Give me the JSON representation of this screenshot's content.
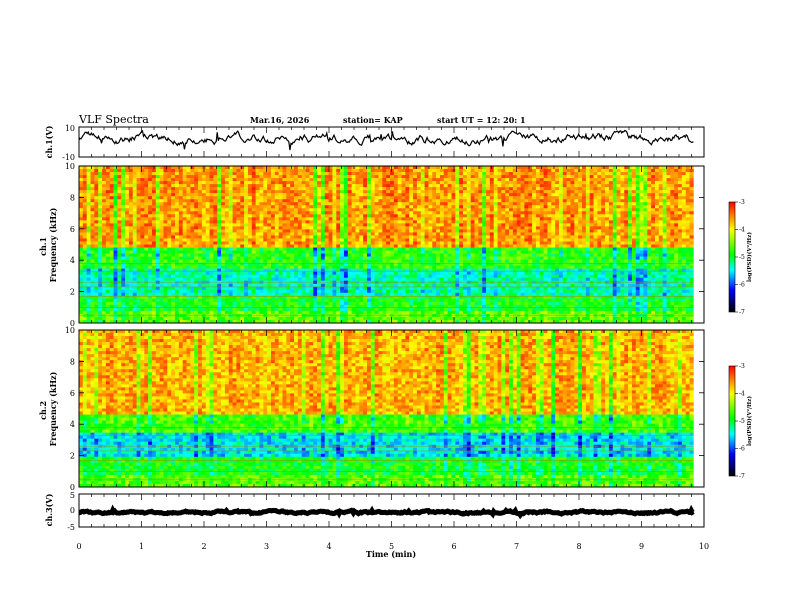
{
  "header": {
    "title": "VLF Spectra",
    "date": "Mar.16, 2026",
    "station": "station= KAP",
    "start": "start  UT  =    12: 20: 1"
  },
  "colorbar": {
    "label": "log(PSD)(V²/Hz)",
    "ticks": [
      "-3",
      "-4",
      "-5",
      "-6",
      "-7"
    ],
    "colors": [
      "#ff0000",
      "#ffff00",
      "#00ff00",
      "#00ffff",
      "#0000ff",
      "#000000"
    ]
  },
  "chart_data": [
    {
      "type": "line",
      "name": "ch1-waveform",
      "ylabel": "ch.1(V)",
      "ylim": [
        -10,
        10
      ],
      "yticks": [
        "10",
        "-10"
      ],
      "xlim": [
        0,
        10
      ],
      "x_extent": [
        0,
        9.83
      ],
      "mean": 2.5,
      "noise_amplitude": 3.5
    },
    {
      "type": "heatmap",
      "name": "ch1-spectrogram",
      "ylabel": "ch.1\nFrequency (kHz)",
      "ylim": [
        0,
        10
      ],
      "yticks": [
        "0",
        "2",
        "4",
        "6",
        "8",
        "10"
      ],
      "xlim": [
        0,
        10
      ],
      "x_extent": [
        0,
        9.83
      ],
      "log_psd_range": [
        -7,
        -3
      ],
      "bands": [
        {
          "f": [
            0,
            0.8
          ],
          "log_psd": -4.6
        },
        {
          "f": [
            0.8,
            1.7
          ],
          "log_psd": -4.9
        },
        {
          "f": [
            1.7,
            3.5
          ],
          "log_psd": -5.3
        },
        {
          "f": [
            3.5,
            4.9
          ],
          "log_psd": -4.8
        },
        {
          "f": [
            4.9,
            10
          ],
          "log_psd": -3.6
        }
      ]
    },
    {
      "type": "heatmap",
      "name": "ch2-spectrogram",
      "ylabel": "ch.2\nFrequency (kHz)",
      "ylim": [
        0,
        10
      ],
      "yticks": [
        "0",
        "2",
        "4",
        "6",
        "8",
        "10"
      ],
      "xlim": [
        0,
        10
      ],
      "x_extent": [
        0,
        9.83
      ],
      "log_psd_range": [
        -7,
        -3
      ],
      "bands": [
        {
          "f": [
            0,
            0.8
          ],
          "log_psd": -4.6
        },
        {
          "f": [
            0.8,
            1.9
          ],
          "log_psd": -4.9
        },
        {
          "f": [
            1.9,
            3.4
          ],
          "log_psd": -5.5
        },
        {
          "f": [
            3.4,
            4.6
          ],
          "log_psd": -4.7
        },
        {
          "f": [
            4.6,
            10
          ],
          "log_psd": -3.7
        }
      ]
    },
    {
      "type": "line",
      "name": "ch3-waveform",
      "ylabel": "ch.3(V)",
      "ylim": [
        -5,
        5
      ],
      "yticks": [
        "5",
        "0",
        "-5"
      ],
      "xlim": [
        0,
        10
      ],
      "x_extent": [
        0,
        9.83
      ],
      "mean": -0.5,
      "noise_amplitude": 0.4
    }
  ],
  "xaxis": {
    "label": "Time (min)",
    "ticks": [
      "0",
      "1",
      "2",
      "3",
      "4",
      "5",
      "6",
      "7",
      "8",
      "9",
      "10"
    ]
  }
}
